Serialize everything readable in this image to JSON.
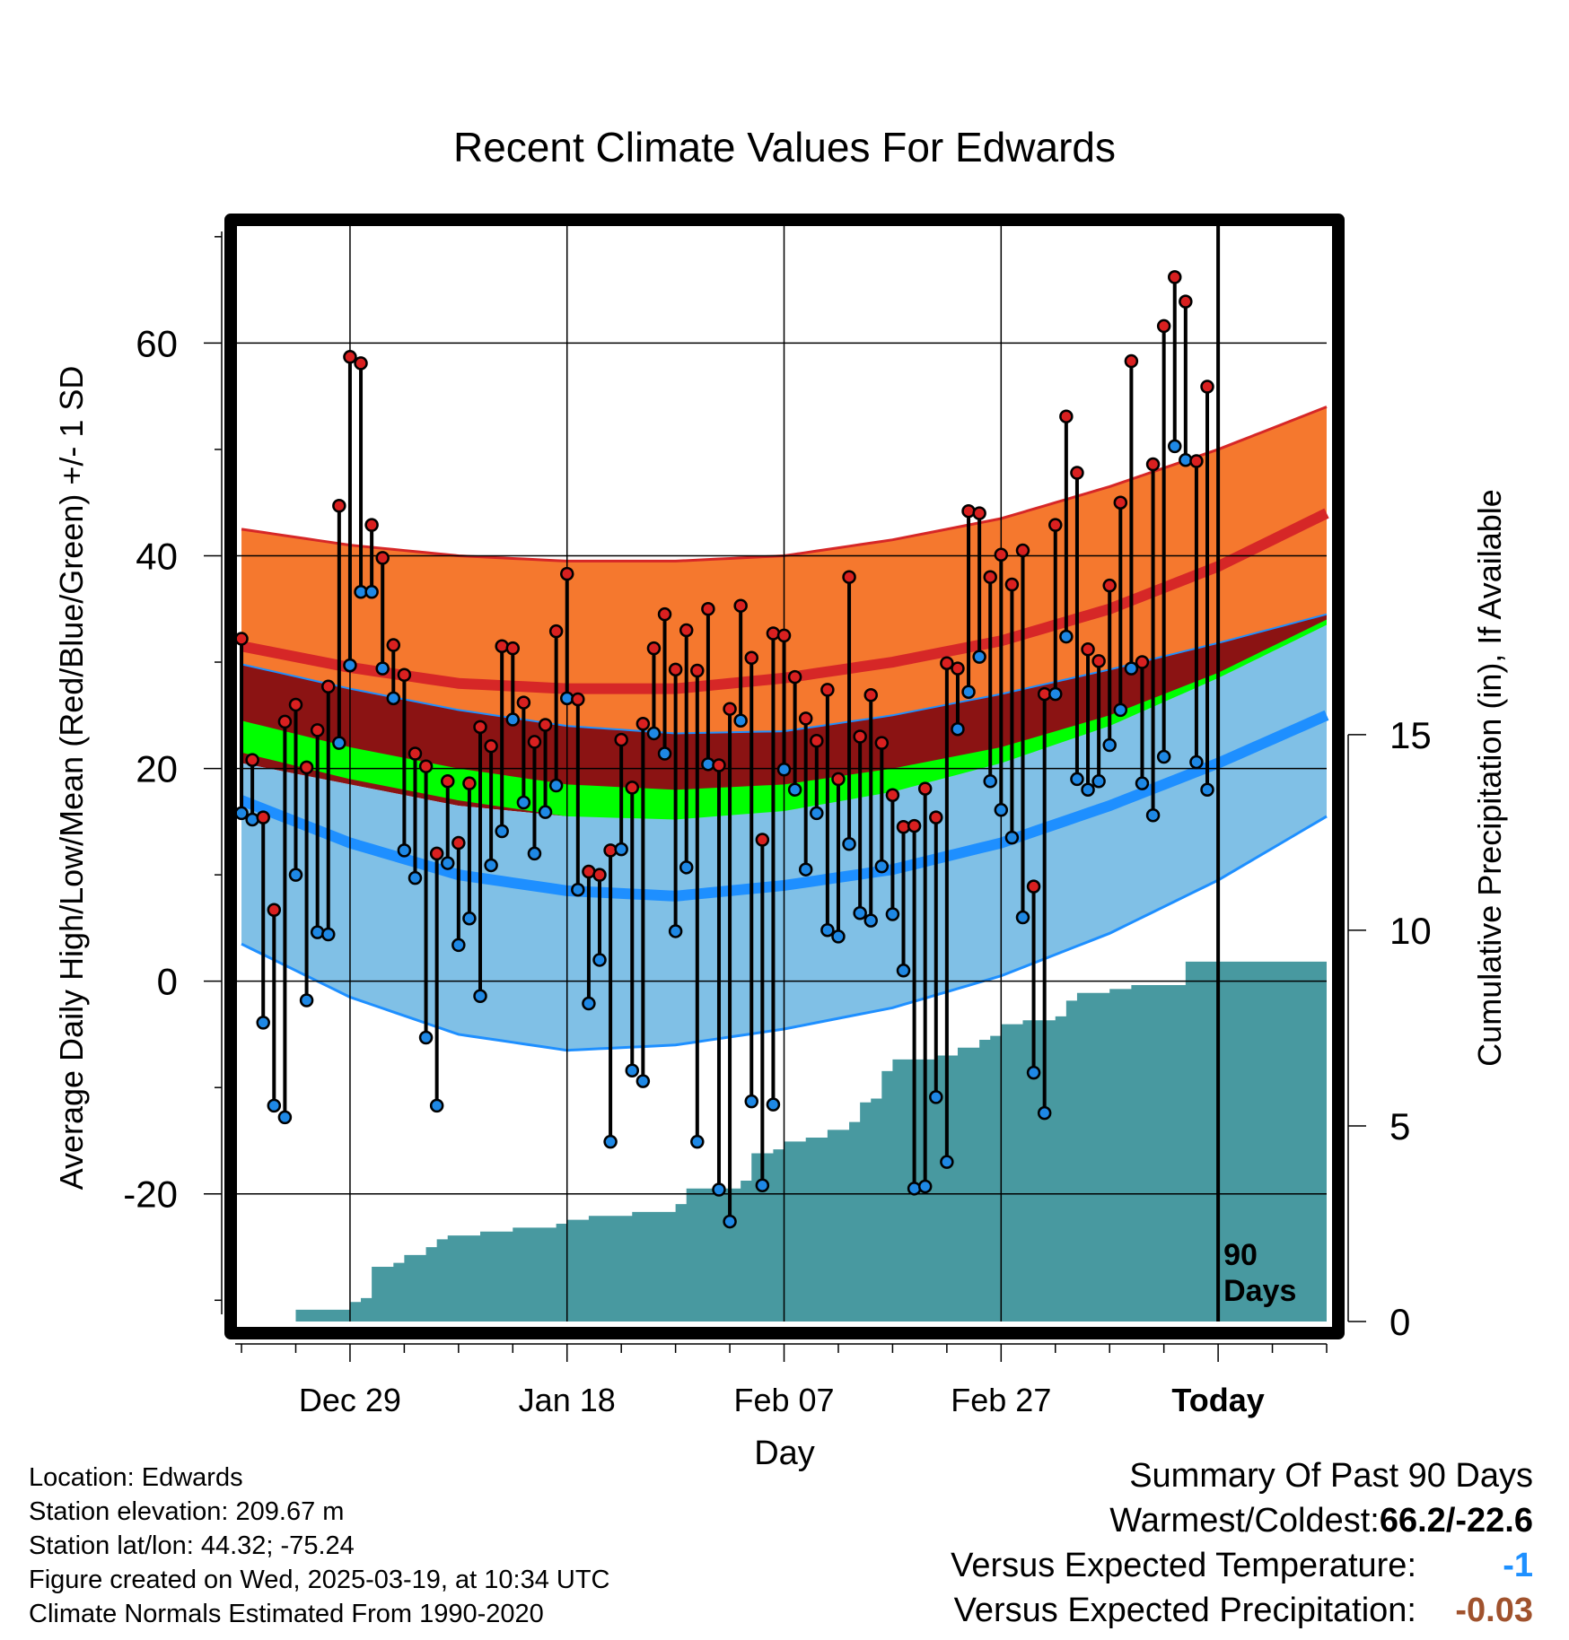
{
  "chart_data": {
    "type": "line",
    "title": "Recent Climate Values For Edwards",
    "xlabel": "Day",
    "ylabel_left": "Average Daily High/Low/Mean (Red/Blue/Green) +/- 1 SD",
    "ylabel_right": "Cumulative Precipitation (in), If Available",
    "x_tick_labels": [
      "Dec 29",
      "Jan 18",
      "Feb 07",
      "Feb 27",
      "Today"
    ],
    "x_tick_days": [
      10,
      30,
      50,
      70,
      90
    ],
    "xlim": [
      -0.5,
      100
    ],
    "ylim_left": [
      -32,
      71
    ],
    "y_ticks_left": [
      -20,
      0,
      20,
      40,
      60
    ],
    "y_ticks_left_labels": [
      "-20",
      "0",
      "20",
      "40",
      "60"
    ],
    "ylim_right": [
      0,
      28
    ],
    "y_ticks_right": [
      0,
      5,
      10,
      15
    ],
    "y_ticks_right_labels": [
      "0",
      "5",
      "10",
      "15"
    ],
    "today_day": 90,
    "today_label_1": "90",
    "today_label_2": "Days",
    "grid": true,
    "normals": {
      "day": [
        0,
        10,
        20,
        30,
        40,
        50,
        60,
        70,
        80,
        90,
        100
      ],
      "high_upper": [
        42.5,
        41,
        40,
        39.5,
        39.5,
        40,
        41.5,
        43.5,
        46.5,
        50,
        54
      ],
      "high_mean": [
        31.5,
        29.5,
        28,
        27.5,
        27.5,
        28.5,
        30,
        32,
        35,
        39,
        44
      ],
      "mean_upper": [
        29.8,
        27.5,
        25.5,
        24,
        23.3,
        23.5,
        25,
        27,
        29.3,
        31.8,
        34.5
      ],
      "mean": [
        24.5,
        22,
        20,
        18.5,
        18,
        18.5,
        20,
        22,
        25,
        29,
        34
      ],
      "mean_lower": [
        21.5,
        19,
        17,
        15.5,
        15.2,
        16,
        17.8,
        20.5,
        24,
        28.5,
        33.5
      ],
      "low_upper": [
        20.5,
        18.5,
        16.5,
        15.5,
        15.3,
        16.5,
        18.5,
        21,
        24.5,
        28.8,
        33.5
      ],
      "low_mean": [
        17,
        13,
        10,
        8.5,
        8,
        9,
        10.5,
        13,
        16.5,
        20.5,
        25
      ],
      "low_lower": [
        3.5,
        -1.5,
        -5,
        -6.5,
        -6,
        -4.5,
        -2.5,
        0.5,
        4.5,
        9.5,
        15.5
      ]
    },
    "obs_day": [
      0,
      1,
      2,
      3,
      4,
      5,
      6,
      7,
      8,
      9,
      10,
      11,
      12,
      13,
      14,
      15,
      16,
      17,
      18,
      19,
      20,
      21,
      22,
      23,
      24,
      25,
      26,
      27,
      28,
      29,
      30,
      31,
      32,
      33,
      34,
      35,
      36,
      37,
      38,
      39,
      40,
      41,
      42,
      43,
      44,
      45,
      46,
      47,
      48,
      49,
      50,
      51,
      52,
      53,
      54,
      55,
      56,
      57,
      58,
      59,
      60,
      61,
      62,
      63,
      64,
      65,
      66,
      67,
      68,
      69,
      70,
      71,
      72,
      73,
      74,
      75,
      76,
      77,
      78,
      79,
      80,
      81,
      82,
      83,
      84,
      85,
      86,
      87,
      88,
      89
    ],
    "obs_high": [
      32.2,
      20.8,
      15.4,
      6.7,
      24.4,
      26.0,
      20.1,
      23.6,
      27.7,
      44.7,
      58.7,
      58.1,
      42.9,
      39.8,
      31.6,
      28.8,
      21.4,
      20.2,
      12.0,
      18.8,
      13.0,
      18.6,
      23.9,
      22.1,
      31.5,
      31.3,
      26.2,
      22.5,
      24.1,
      32.9,
      38.3,
      26.5,
      10.3,
      10.0,
      12.3,
      22.7,
      18.2,
      24.2,
      31.3,
      34.5,
      29.3,
      33.0,
      29.2,
      35.0,
      20.3,
      25.6,
      35.3,
      30.4,
      13.3,
      32.7,
      32.5,
      28.6,
      24.7,
      22.6,
      27.4,
      19.0,
      38.0,
      23.0,
      26.9,
      22.4,
      17.5,
      14.5,
      14.6,
      18.1,
      15.4,
      29.9,
      29.4,
      44.2,
      44.0,
      38.0,
      40.1,
      37.3,
      40.5,
      8.9,
      27.0,
      42.9,
      53.1,
      47.8,
      31.2,
      30.1,
      37.2,
      45.0,
      58.3,
      30.0,
      48.6,
      61.6,
      66.2,
      63.9,
      48.9,
      55.9
    ],
    "obs_low": [
      15.8,
      15.2,
      -3.9,
      -11.7,
      -12.8,
      10.0,
      -1.8,
      4.6,
      4.4,
      22.4,
      29.7,
      36.6,
      36.6,
      29.4,
      26.6,
      12.3,
      9.7,
      -5.3,
      -11.7,
      11.1,
      3.4,
      5.9,
      -1.4,
      10.9,
      14.1,
      24.6,
      16.8,
      12.0,
      15.9,
      18.4,
      26.6,
      8.6,
      -2.1,
      2.0,
      -15.1,
      12.4,
      -8.4,
      -9.4,
      23.3,
      21.4,
      4.7,
      10.7,
      -15.1,
      20.4,
      -19.6,
      -22.6,
      24.5,
      -11.3,
      -19.2,
      -11.6,
      19.9,
      18.0,
      10.5,
      15.8,
      4.8,
      4.2,
      12.9,
      6.4,
      5.7,
      10.8,
      6.3,
      1.0,
      -19.5,
      -19.3,
      -10.9,
      -17.0,
      23.7,
      27.2,
      30.5,
      18.8,
      16.1,
      13.5,
      6.0,
      -8.6,
      -12.4,
      27.0,
      32.4,
      19.0,
      18.0,
      18.8,
      22.2,
      25.5,
      29.4,
      18.6,
      15.6,
      21.1,
      50.3,
      49.0,
      20.6,
      18.0
    ],
    "precip_day": [
      0,
      4,
      5,
      6,
      8,
      9,
      10,
      11,
      12,
      13,
      14,
      15,
      17,
      18,
      19,
      20,
      21,
      22,
      24,
      25,
      28,
      29,
      30,
      32,
      34,
      36,
      38,
      40,
      41,
      42,
      45,
      46,
      47,
      49,
      50,
      52,
      54,
      56,
      57,
      58,
      59,
      60,
      62,
      64,
      65,
      66,
      67,
      68,
      69,
      70,
      71,
      72,
      73,
      74,
      75,
      76,
      77,
      78,
      80,
      81,
      82,
      84,
      86,
      87,
      88,
      89,
      90,
      100
    ],
    "precip_cum": [
      0.0,
      0.0,
      0.3,
      0.3,
      0.3,
      0.3,
      0.5,
      0.6,
      1.4,
      1.4,
      1.5,
      1.7,
      1.9,
      2.1,
      2.2,
      2.2,
      2.2,
      2.3,
      2.3,
      2.4,
      2.4,
      2.5,
      2.6,
      2.7,
      2.7,
      2.8,
      2.8,
      3.0,
      3.4,
      3.4,
      3.4,
      3.6,
      4.3,
      4.4,
      4.6,
      4.7,
      4.9,
      5.1,
      5.6,
      5.7,
      6.4,
      6.7,
      6.7,
      6.8,
      6.8,
      7.0,
      7.0,
      7.2,
      7.3,
      7.6,
      7.6,
      7.7,
      7.7,
      7.7,
      7.8,
      8.2,
      8.4,
      8.4,
      8.5,
      8.5,
      8.6,
      8.6,
      8.6,
      9.2,
      9.2,
      9.2,
      9.2,
      9.2
    ]
  },
  "info": {
    "location": "Location: Edwards",
    "elevation": "Station elevation: 209.67 m",
    "latlon": "Station lat/lon: 44.32; -75.24",
    "created": "Figure created on Wed, 2025-03-19, at 10:34 UTC",
    "normals": "Climate Normals Estimated From 1990-2020"
  },
  "summary": {
    "title": "Summary Of Past 90 Days",
    "warmest_label": "Warmest/Coldest: ",
    "warmest_value": "66.2/-22.6",
    "temp_label": "Versus Expected Temperature:",
    "temp_value": "-1",
    "temp_color": "#1e90ff",
    "precip_label": "Versus Expected Precipitation:",
    "precip_value": "-0.03",
    "precip_color": "#a0522d"
  },
  "colors": {
    "high_band": "#f5782e",
    "high_line": "#d62727",
    "mean_band_dark": "#8b1313",
    "mean_line": "#00ff00",
    "low_band": "#80c0e6",
    "low_line": "#1e8fff",
    "precip": "#4899a0",
    "high_dot": "#d92020",
    "low_dot": "#1e88e5"
  }
}
